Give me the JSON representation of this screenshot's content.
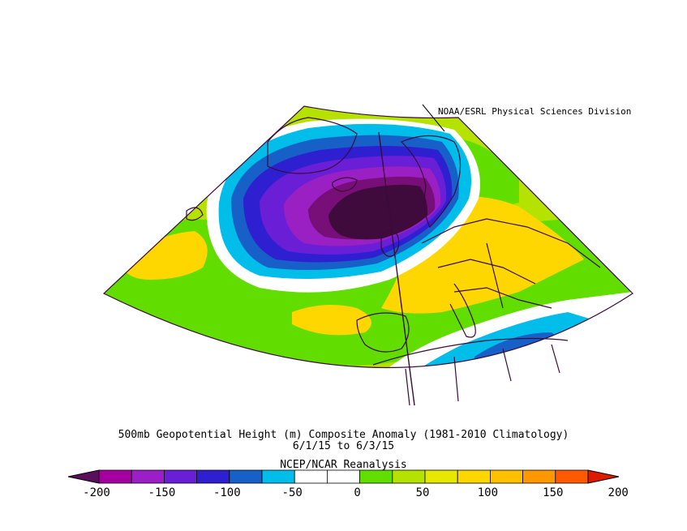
{
  "credit": "NOAA/ESRL Physical Sciences Division",
  "title_line1": "500mb Geopotential Height (m) Composite Anomaly (1981-2010 Climatology)",
  "title_line2": "6/1/15  to 6/3/15",
  "title_line3": "NCEP/NCAR Reanalysis",
  "colorbar": {
    "colors": [
      "#5a0f5c",
      "#a5009f",
      "#9b1ec7",
      "#6a1fd6",
      "#2e1fd0",
      "#1760c8",
      "#00bde9",
      "#ffffff",
      "#ffffff",
      "#62dd00",
      "#b6e200",
      "#e6e800",
      "#ffd700",
      "#ffc000",
      "#ff9800",
      "#ff5a00",
      "#dd1a00"
    ],
    "tick_labels": [
      "-200",
      "-150",
      "-100",
      "-50",
      "0",
      "50",
      "100",
      "150",
      "200"
    ]
  },
  "colors": {
    "neg_extreme": "#3f0a3c",
    "neg_deep": "#780e78",
    "neg_purple": "#9b20c4",
    "neg_violet": "#6a1fd6",
    "neg_blue": "#2e1fd0",
    "neg_mid": "#1760c8",
    "neg_light": "#00bde9",
    "pos_green": "#62dd00",
    "pos_lime": "#b6e200",
    "pos_yellow": "#ffd700",
    "border": "#3a0a3a"
  }
}
